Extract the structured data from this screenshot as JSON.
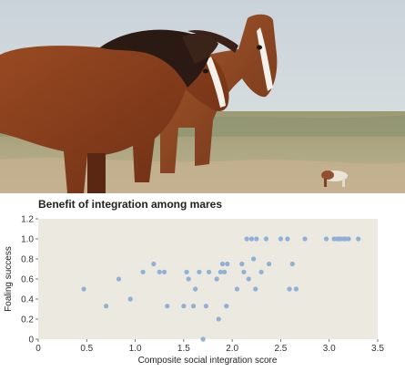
{
  "chart_data": {
    "type": "scatter",
    "title": "Benefit of integration among mares",
    "xlabel": "Composite social integration score",
    "ylabel": "Foaling success",
    "xlim": [
      0,
      3.5
    ],
    "ylim": [
      0,
      1.2
    ],
    "xticks": [
      "0",
      "0.5",
      "1.0",
      "1.5",
      "2.0",
      "2.5",
      "3.0",
      "3.5"
    ],
    "yticks": [
      "0",
      "0.2",
      "0.4",
      "0.6",
      "0.8",
      "1.0",
      "1.2"
    ],
    "grid": false,
    "background_color": "#ece9e0",
    "point_color": "#8fb0d7",
    "series": [
      {
        "points": [
          [
            0.47,
            0.5
          ],
          [
            0.7,
            0.33
          ],
          [
            0.83,
            0.6
          ],
          [
            0.95,
            0.4
          ],
          [
            1.08,
            0.67
          ],
          [
            1.19,
            0.75
          ],
          [
            1.25,
            0.67
          ],
          [
            1.3,
            0.67
          ],
          [
            1.33,
            0.33
          ],
          [
            1.5,
            0.33
          ],
          [
            1.53,
            0.67
          ],
          [
            1.55,
            0.6
          ],
          [
            1.6,
            0.33
          ],
          [
            1.62,
            0.5
          ],
          [
            1.66,
            0.67
          ],
          [
            1.7,
            0.0
          ],
          [
            1.73,
            0.33
          ],
          [
            1.76,
            0.67
          ],
          [
            1.84,
            0.6
          ],
          [
            1.86,
            0.2
          ],
          [
            1.88,
            0.67
          ],
          [
            1.9,
            0.75
          ],
          [
            1.92,
            0.67
          ],
          [
            1.94,
            0.33
          ],
          [
            1.95,
            0.75
          ],
          [
            2.05,
            0.5
          ],
          [
            2.1,
            0.75
          ],
          [
            2.12,
            0.67
          ],
          [
            2.15,
            1.0
          ],
          [
            2.17,
            0.6
          ],
          [
            2.2,
            1.0
          ],
          [
            2.22,
            0.8
          ],
          [
            2.24,
            0.5
          ],
          [
            2.25,
            1.0
          ],
          [
            2.3,
            0.67
          ],
          [
            2.35,
            1.0
          ],
          [
            2.38,
            0.75
          ],
          [
            2.5,
            1.0
          ],
          [
            2.57,
            1.0
          ],
          [
            2.59,
            0.5
          ],
          [
            2.62,
            0.75
          ],
          [
            2.66,
            0.5
          ],
          [
            2.75,
            1.0
          ],
          [
            2.97,
            1.0
          ],
          [
            3.05,
            1.0
          ],
          [
            3.08,
            1.0
          ],
          [
            3.1,
            1.0
          ],
          [
            3.12,
            1.0
          ],
          [
            3.15,
            1.0
          ],
          [
            3.17,
            1.0
          ],
          [
            3.2,
            1.0
          ],
          [
            3.3,
            1.0
          ]
        ]
      }
    ]
  }
}
